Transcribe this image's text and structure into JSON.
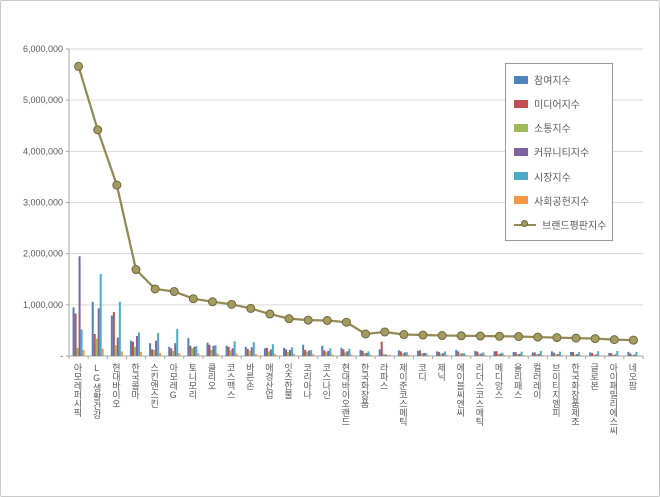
{
  "frame": {
    "background": "#ffffff",
    "border_color": "#c9c9c9"
  },
  "chart_data": {
    "type": "bar",
    "combo": "grouped bars with overlay line",
    "title": "",
    "categories": [
      "아모레퍼시픽",
      "LG생활건강",
      "현대바이오",
      "한국콜마",
      "스킨앤스킨",
      "아모레G",
      "토니모리",
      "클리오",
      "코스맥스",
      "바른손",
      "애경산업",
      "잇츠한불",
      "코리아나",
      "코스나인",
      "현대바이오랜드",
      "한국화장품",
      "라파스",
      "제이준코스메틱",
      "코디",
      "제닉",
      "에이블씨엔씨",
      "리더스코스메틱",
      "메디앙스",
      "올리패스",
      "컬러레이",
      "브이티지엠피",
      "한국화장품제조",
      "글로본",
      "아이패밀리에스씨",
      "네오팜"
    ],
    "series": [
      {
        "name": "참여지수",
        "type": "bar",
        "color": "#4F81BD",
        "values": [
          950000,
          1060000,
          790000,
          300000,
          250000,
          180000,
          350000,
          260000,
          200000,
          180000,
          150000,
          160000,
          220000,
          200000,
          160000,
          120000,
          130000,
          110000,
          100000,
          90000,
          120000,
          100000,
          90000,
          80000,
          70000,
          90000,
          80000,
          70000,
          60000,
          80000
        ]
      },
      {
        "name": "미디어지수",
        "type": "bar",
        "color": "#C0504D",
        "values": [
          830000,
          430000,
          860000,
          280000,
          130000,
          150000,
          200000,
          220000,
          180000,
          140000,
          160000,
          130000,
          120000,
          110000,
          130000,
          100000,
          280000,
          90000,
          110000,
          80000,
          90000,
          85000,
          95000,
          75000,
          70000,
          65000,
          75000,
          60000,
          55000,
          50000
        ]
      },
      {
        "name": "소통지수",
        "type": "bar",
        "color": "#9BBB59",
        "values": [
          160000,
          340000,
          210000,
          180000,
          120000,
          100000,
          150000,
          120000,
          110000,
          100000,
          90000,
          80000,
          85000,
          75000,
          70000,
          60000,
          40000,
          55000,
          50000,
          45000,
          50000,
          45000,
          40000,
          38000,
          35000,
          33000,
          30000,
          28000,
          26000,
          24000
        ]
      },
      {
        "name": "커뮤니티지수",
        "type": "bar",
        "color": "#8064A2",
        "values": [
          1950000,
          930000,
          360000,
          390000,
          300000,
          250000,
          180000,
          200000,
          150000,
          170000,
          130000,
          120000,
          110000,
          100000,
          95000,
          60000,
          30000,
          70000,
          60000,
          55000,
          50000,
          48000,
          45000,
          42000,
          40000,
          38000,
          35000,
          33000,
          30000,
          28000
        ]
      },
      {
        "name": "시장지수",
        "type": "bar",
        "color": "#4BACC6",
        "values": [
          520000,
          1600000,
          1060000,
          460000,
          450000,
          530000,
          190000,
          210000,
          290000,
          270000,
          230000,
          170000,
          115000,
          150000,
          140000,
          90000,
          15000,
          75000,
          60000,
          90000,
          55000,
          70000,
          65000,
          85000,
          100000,
          84000,
          75000,
          94000,
          99000,
          78000
        ]
      },
      {
        "name": "사회공헌지수",
        "type": "bar",
        "color": "#F79646",
        "values": [
          120000,
          140000,
          90000,
          80000,
          60000,
          55000,
          50000,
          48000,
          45000,
          42000,
          40000,
          38000,
          35000,
          33000,
          30000,
          28000,
          25000,
          24000,
          23000,
          22000,
          21000,
          20000,
          19000,
          18000,
          17000,
          16000,
          15000,
          14000,
          13000,
          12000
        ]
      },
      {
        "name": "브랜드평판지수",
        "type": "line",
        "color": "#948A54",
        "marker_fill": "#A59B5F",
        "marker_stroke": "#6E673F",
        "values": [
          5660000,
          4420000,
          3340000,
          1690000,
          1310000,
          1260000,
          1120000,
          1060000,
          1010000,
          930000,
          820000,
          730000,
          700000,
          695000,
          660000,
          430000,
          470000,
          420000,
          410000,
          400000,
          395000,
          390000,
          385000,
          380000,
          370000,
          360000,
          350000,
          340000,
          320000,
          310000
        ]
      }
    ],
    "y_axis": {
      "min": 0,
      "max": 6000000,
      "step": 1000000,
      "tick_labels": [
        "-",
        "1,000,000",
        "2,000,000",
        "3,000,000",
        "4,000,000",
        "5,000,000",
        "6,000,000"
      ]
    },
    "x_axis": {
      "label_orientation": "vertical-upright"
    },
    "grid": true,
    "gridline_color": "#d9d9d9",
    "axis_color": "#a6a6a6",
    "legend_position": "inside-top-right"
  }
}
